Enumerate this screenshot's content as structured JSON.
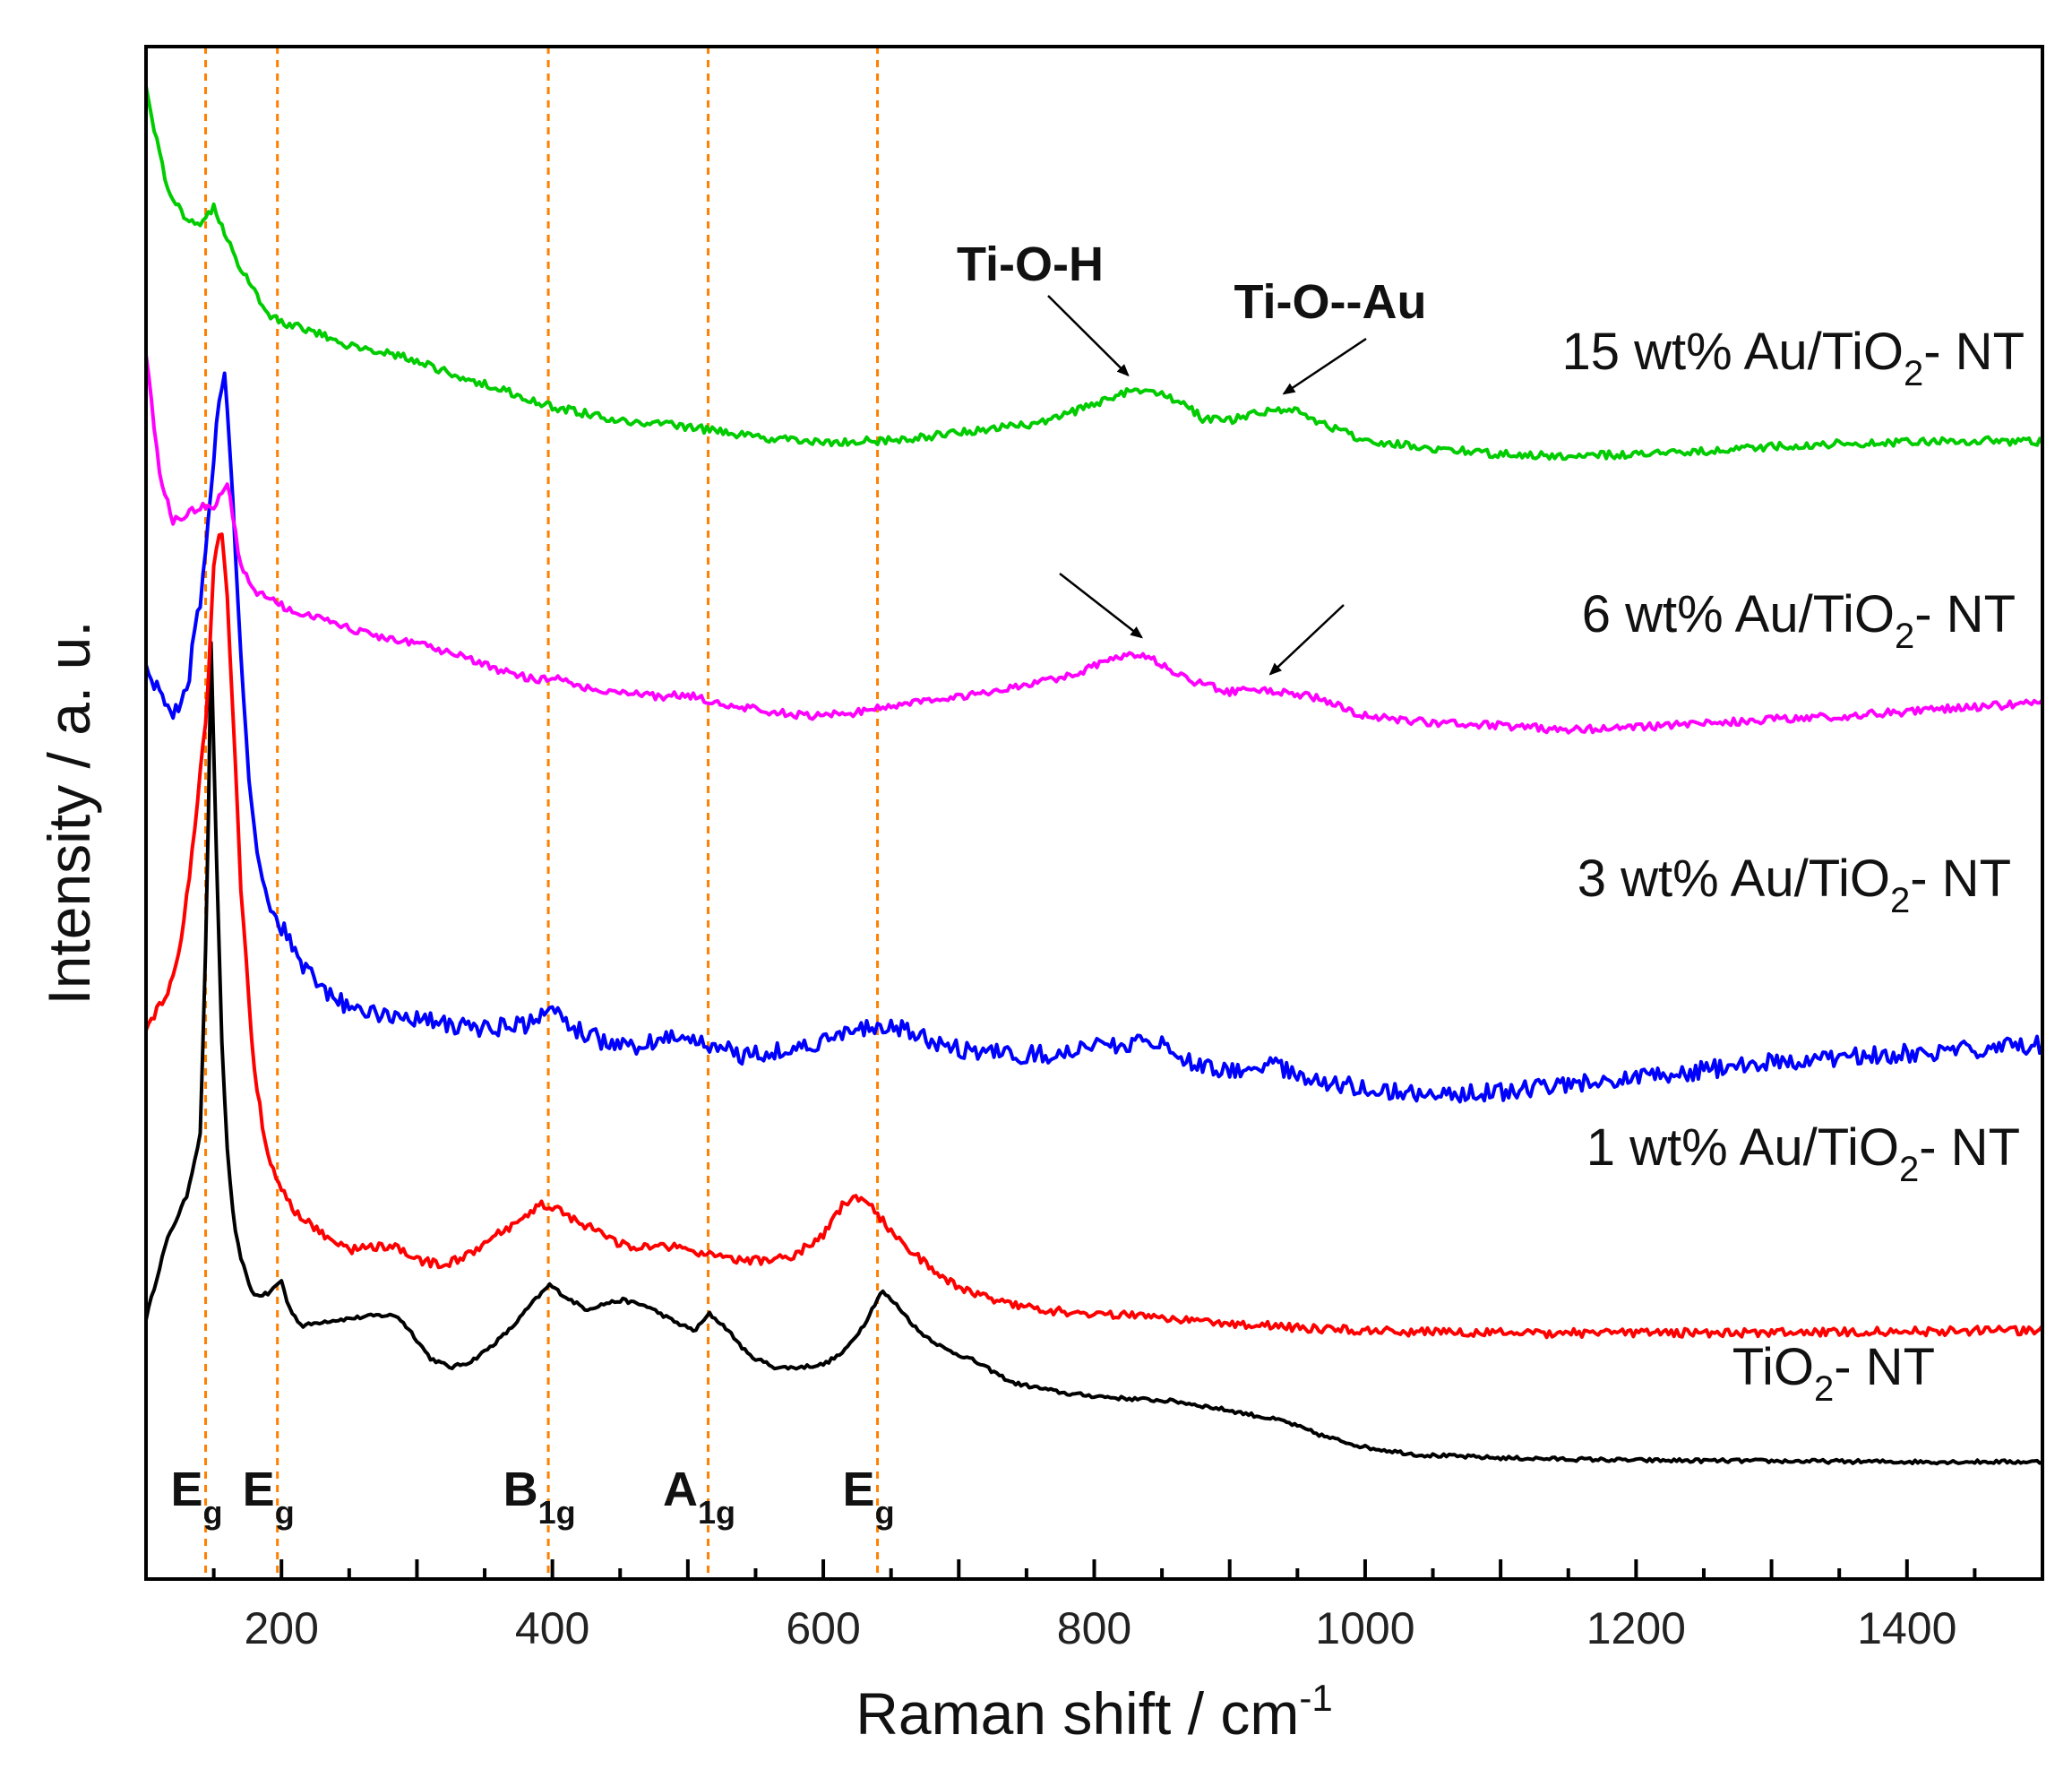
{
  "chart_data": {
    "type": "line",
    "title": "",
    "xlabel": "Raman shift / cm",
    "xlabel_sup": "-1",
    "ylabel": "Intensity / a. u.",
    "xlim": [
      100,
      1500
    ],
    "ylim": [
      0,
      100
    ],
    "xticks": [
      200,
      400,
      600,
      800,
      1000,
      1200,
      1400
    ],
    "yticks_shown": false,
    "series": [
      {
        "name": "TiO2- NT",
        "label_main": "TiO",
        "label_sub": "2",
        "label_tail": "- NT",
        "color": "#000000",
        "noise": 0.12,
        "x": [
          100,
          115,
          130,
          140,
          145,
          148,
          150,
          153,
          156,
          160,
          165,
          170,
          175,
          180,
          190,
          200,
          205,
          215,
          230,
          250,
          270,
          285,
          295,
          310,
          325,
          340,
          355,
          370,
          385,
          398,
          410,
          425,
          440,
          452,
          470,
          490,
          505,
          516,
          528,
          545,
          565,
          580,
          600,
          615,
          630,
          643,
          655,
          670,
          690,
          710,
          740,
          780,
          820,
          860,
          900,
          940,
          970,
          1000,
          1040,
          1100,
          1200,
          1300,
          1400,
          1500
        ],
        "y": [
          17,
          22,
          25,
          29,
          44,
          61,
          54,
          44,
          35,
          28,
          23,
          21,
          19.5,
          18.5,
          18.6,
          19.5,
          17.8,
          16.5,
          16.8,
          17,
          17.2,
          17.2,
          16.2,
          14.4,
          13.8,
          14.2,
          15.2,
          16.4,
          18,
          19.2,
          18.4,
          17.6,
          18,
          18.2,
          17.8,
          16.8,
          16.2,
          17.3,
          16.4,
          14.6,
          13.8,
          13.8,
          14,
          14.8,
          16.6,
          18.8,
          17.8,
          16.2,
          15,
          14.3,
          12.8,
          12.1,
          11.8,
          11.6,
          11,
          10.3,
          9.3,
          8.6,
          8.1,
          7.9,
          7.75,
          7.7,
          7.65,
          7.65
        ]
      },
      {
        "name": "1 wt% Au/TiO2- NT",
        "label_main": "1 wt% Au/TiO",
        "label_sub": "2",
        "label_tail": "- NT",
        "color": "#ff0000",
        "noise": 0.28,
        "x": [
          100,
          115,
          125,
          135,
          145,
          150,
          155,
          160,
          165,
          170,
          180,
          190,
          200,
          210,
          230,
          250,
          280,
          300,
          320,
          340,
          360,
          380,
          390,
          400,
          420,
          440,
          460,
          480,
          500,
          520,
          540,
          560,
          580,
          600,
          615,
          625,
          635,
          645,
          660,
          680,
          700,
          730,
          760,
          800,
          850,
          900,
          950,
          1000,
          1100,
          1200,
          1300,
          1400,
          1500
        ],
        "y": [
          36,
          38,
          41,
          48,
          57,
          66,
          69,
          64,
          55,
          45,
          33,
          27.5,
          25.5,
          24,
          22.5,
          21.5,
          21.8,
          20.8,
          20.5,
          21.2,
          22.5,
          23.5,
          24.5,
          24.3,
          23.3,
          22.3,
          21.5,
          21.8,
          21.5,
          21,
          20.8,
          20.8,
          21.2,
          22.5,
          24.5,
          24.8,
          24.5,
          23.2,
          21.8,
          20.2,
          19,
          18.2,
          17.6,
          17.3,
          17.1,
          16.7,
          16.4,
          16.2,
          16.05,
          16.05,
          16.1,
          16.15,
          16.25
        ]
      },
      {
        "name": "3 wt% Au/TiO2- NT",
        "label_main": "3 wt% Au/TiO",
        "label_sub": "2",
        "label_tail": "- NT",
        "color": "#0000ff",
        "noise": 0.6,
        "x": [
          100,
          110,
          120,
          130,
          140,
          148,
          155,
          158,
          162,
          168,
          175,
          185,
          195,
          205,
          215,
          230,
          250,
          270,
          300,
          330,
          360,
          380,
          400,
          420,
          440,
          460,
          480,
          500,
          520,
          540,
          560,
          580,
          600,
          620,
          640,
          660,
          680,
          700,
          740,
          780,
          820,
          850,
          870,
          900,
          930,
          960,
          1000,
          1050,
          1100,
          1150,
          1200,
          1250,
          1300,
          1350,
          1400,
          1450,
          1500
        ],
        "y": [
          60,
          57.5,
          56.5,
          58,
          64,
          71,
          78,
          78.5,
          74,
          63,
          53,
          45.5,
          43,
          42,
          40,
          38.5,
          37.2,
          37,
          36.6,
          36,
          36,
          36.2,
          37,
          35.8,
          35,
          34.6,
          35.2,
          35.3,
          34.8,
          34.2,
          34.4,
          34.6,
          35.2,
          35.6,
          36,
          35.8,
          35.2,
          34.5,
          34.2,
          34.3,
          35,
          34.8,
          33.8,
          33.2,
          33.5,
          32.6,
          32,
          31.6,
          31.8,
          32.2,
          32.7,
          33.2,
          33.7,
          34,
          34.3,
          34.6,
          34.9
        ]
      },
      {
        "name": "6 wt% Au/TiO2- NT",
        "label_main": "6 wt% Au/TiO",
        "label_sub": "2",
        "label_tail": "- NT",
        "color": "#ff00ff",
        "noise": 0.25,
        "x": [
          100,
          110,
          120,
          130,
          140,
          150,
          160,
          165,
          170,
          180,
          190,
          200,
          215,
          235,
          250,
          270,
          300,
          330,
          360,
          390,
          400,
          420,
          450,
          480,
          500,
          520,
          560,
          590,
          620,
          650,
          700,
          750,
          790,
          820,
          835,
          850,
          870,
          900,
          930,
          960,
          1000,
          1050,
          1100,
          1150,
          1200,
          1250,
          1300,
          1350,
          1400,
          1450,
          1500
        ],
        "y": [
          80,
          72,
          69,
          69.5,
          70,
          70,
          71.5,
          69,
          66,
          64.5,
          64.2,
          63.5,
          63,
          62.6,
          62,
          61.5,
          61,
          60.3,
          59.3,
          58.6,
          58.8,
          58.3,
          57.8,
          57.6,
          57.7,
          57.2,
          56.6,
          56.3,
          56.5,
          57,
          57.6,
          58.3,
          59.2,
          60.2,
          60.4,
          59.6,
          58.6,
          57.9,
          58,
          57.6,
          56.3,
          55.9,
          55.7,
          55.4,
          55.6,
          55.8,
          56.1,
          56.3,
          56.6,
          56.9,
          57.2
        ]
      },
      {
        "name": "15 wt% Au/TiO2- NT",
        "label_main": "15 wt% Au/TiO",
        "label_sub": "2",
        "label_tail": "- NT",
        "color": "#00cc00",
        "noise": 0.25,
        "x": [
          100,
          105,
          115,
          130,
          140,
          150,
          160,
          170,
          180,
          190,
          200,
          220,
          250,
          280,
          300,
          330,
          360,
          400,
          450,
          500,
          550,
          600,
          650,
          700,
          750,
          780,
          810,
          830,
          850,
          870,
          880,
          900,
          930,
          950,
          970,
          1000,
          1050,
          1100,
          1150,
          1200,
          1250,
          1300,
          1350,
          1400,
          1450,
          1500
        ],
        "y": [
          97.5,
          95,
          91,
          88.5,
          88.5,
          89.5,
          87.5,
          85.5,
          84,
          82.5,
          82,
          81.5,
          80.5,
          80,
          79.5,
          78.5,
          77.7,
          76.5,
          75.6,
          75.2,
          74.5,
          74.2,
          74.3,
          74.8,
          75.3,
          76,
          77,
          77.6,
          77.4,
          76.5,
          75.7,
          75.6,
          76.3,
          76.2,
          75.3,
          74.3,
          73.8,
          73.4,
          73.3,
          73.4,
          73.6,
          73.9,
          74.1,
          74.2,
          74.3,
          74.2
        ]
      }
    ],
    "series_labels_position": "right",
    "reference_lines": [
      {
        "x": 144,
        "label_main": "E",
        "label_sub": "g"
      },
      {
        "x": 197,
        "label_main": "E",
        "label_sub": "g"
      },
      {
        "x": 397,
        "label_main": "B",
        "label_sub": "1g"
      },
      {
        "x": 515,
        "label_main": "A",
        "label_sub": "1g"
      },
      {
        "x": 640,
        "label_main": "E",
        "label_sub": "g"
      }
    ],
    "reference_line_color": "#ff8000",
    "annotations": [
      {
        "text": "Ti-O-H",
        "x": 825,
        "y": 77.5
      },
      {
        "text": "Ti-O--Au",
        "x": 940,
        "y": 76.3
      }
    ],
    "arrow_targets": [
      {
        "x": 825,
        "y": 77.5
      },
      {
        "x": 940,
        "y": 76.3
      },
      {
        "x": 835,
        "y": 60.4
      },
      {
        "x": 930,
        "y": 58
      }
    ]
  }
}
